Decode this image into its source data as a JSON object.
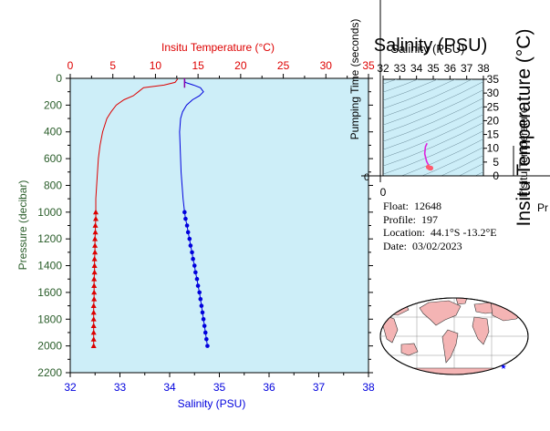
{
  "colors": {
    "plot_bg": "#cdeef8",
    "temperature": "#dd0000",
    "salinity": "#0000dd",
    "pressure_axis": "#2a5d2a",
    "map_land": "#f4b4b4",
    "map_ocean": "#ffffff",
    "float_marker": "#0000ff"
  },
  "main_chart": {
    "chart_data": {
      "type": "line",
      "top_xlabel": "Insitu Temperature (°C)",
      "top_ticks": [
        "0",
        "5",
        "10",
        "15",
        "20",
        "25",
        "30",
        "35"
      ],
      "top_range": [
        0,
        35
      ],
      "xlabel": "Salinity (PSU)",
      "x_ticks": [
        "32",
        "33",
        "34",
        "35",
        "36",
        "37",
        "38"
      ],
      "xlim": [
        32,
        38
      ],
      "ylabel": "Pressure (decibar)",
      "y_ticks": [
        "0",
        "200",
        "400",
        "600",
        "800",
        "1000",
        "1200",
        "1400",
        "1600",
        "1800",
        "2000",
        "2200"
      ],
      "ylim": [
        0,
        2200
      ],
      "y_inverted": true,
      "grid": false,
      "temperature_profile": {
        "pressure": [
          5,
          30,
          50,
          70,
          100,
          130,
          160,
          200,
          250,
          300,
          400,
          500,
          600,
          700,
          800,
          900,
          1000
        ],
        "values": [
          12.6,
          12.3,
          11.0,
          8.6,
          8.0,
          7.4,
          6.3,
          5.4,
          4.8,
          4.3,
          3.8,
          3.5,
          3.3,
          3.2,
          3.1,
          3.0,
          3.0
        ]
      },
      "temperature_markers": {
        "pressure": [
          1000,
          1050,
          1100,
          1150,
          1200,
          1250,
          1300,
          1350,
          1400,
          1450,
          1500,
          1550,
          1600,
          1650,
          1700,
          1750,
          1800,
          1850,
          1900,
          1950,
          2000
        ],
        "values": [
          3.0,
          3.0,
          2.95,
          2.95,
          2.9,
          2.9,
          2.9,
          2.85,
          2.85,
          2.85,
          2.8,
          2.8,
          2.8,
          2.8,
          2.75,
          2.75,
          2.75,
          2.75,
          2.75,
          2.75,
          2.75
        ]
      },
      "salinity_profile": {
        "pressure": [
          5,
          30,
          50,
          70,
          100,
          130,
          160,
          200,
          250,
          300,
          400,
          500,
          600,
          700,
          800,
          900,
          1000
        ],
        "values": [
          34.3,
          34.31,
          34.48,
          34.62,
          34.68,
          34.6,
          34.46,
          34.34,
          34.26,
          34.22,
          34.2,
          34.21,
          34.22,
          34.23,
          34.25,
          34.27,
          34.3
        ]
      },
      "salinity_markers": {
        "pressure": [
          1000,
          1050,
          1100,
          1150,
          1200,
          1250,
          1300,
          1350,
          1400,
          1450,
          1500,
          1550,
          1600,
          1650,
          1700,
          1750,
          1800,
          1850,
          1900,
          1950,
          2000
        ],
        "values": [
          34.3,
          34.32,
          34.35,
          34.37,
          34.4,
          34.42,
          34.45,
          34.47,
          34.5,
          34.52,
          34.55,
          34.57,
          34.6,
          34.62,
          34.64,
          34.66,
          34.68,
          34.7,
          34.72,
          34.74,
          34.76
        ]
      }
    }
  },
  "inset_chart": {
    "title": "Salinity (PSU)",
    "ghost_title": "Salinity (PSU)",
    "ylabel": "Pumping Time (seconds)",
    "right_label": "Insitu Temperature (°C)",
    "right_label_ghost": "Insitu Temperature",
    "cutoff_label": "Pr",
    "x_ticks": [
      "32",
      "33",
      "34",
      "35",
      "36",
      "37",
      "38"
    ],
    "y_ticks": [
      "0",
      "5",
      "10",
      "15",
      "20",
      "25",
      "30",
      "35"
    ],
    "left_zero": "0",
    "bottom_zero": "0",
    "chart_data": {
      "type": "line",
      "xlim": [
        32,
        38
      ],
      "ylim": [
        0,
        35
      ],
      "trace_x": [
        34.63,
        34.53,
        34.49,
        34.6,
        34.75,
        34.78
      ],
      "trace_y": [
        11.8,
        10.5,
        8.0,
        5.3,
        3.5,
        3.0
      ],
      "marker_x": [
        34.7,
        34.77,
        34.82,
        34.86
      ],
      "marker_y": [
        3.2,
        2.9,
        2.8,
        2.8
      ]
    }
  },
  "float_info": {
    "float_label": "Float:",
    "float_value": "12648",
    "profile_label": "Profile:",
    "profile_value": "197",
    "location_label": "Location:",
    "location_value": "44.1°S  -13.2°E",
    "date_label": "Date:",
    "date_value": "03/02/2023"
  },
  "map": {
    "float_marker_icon": "star-icon"
  }
}
